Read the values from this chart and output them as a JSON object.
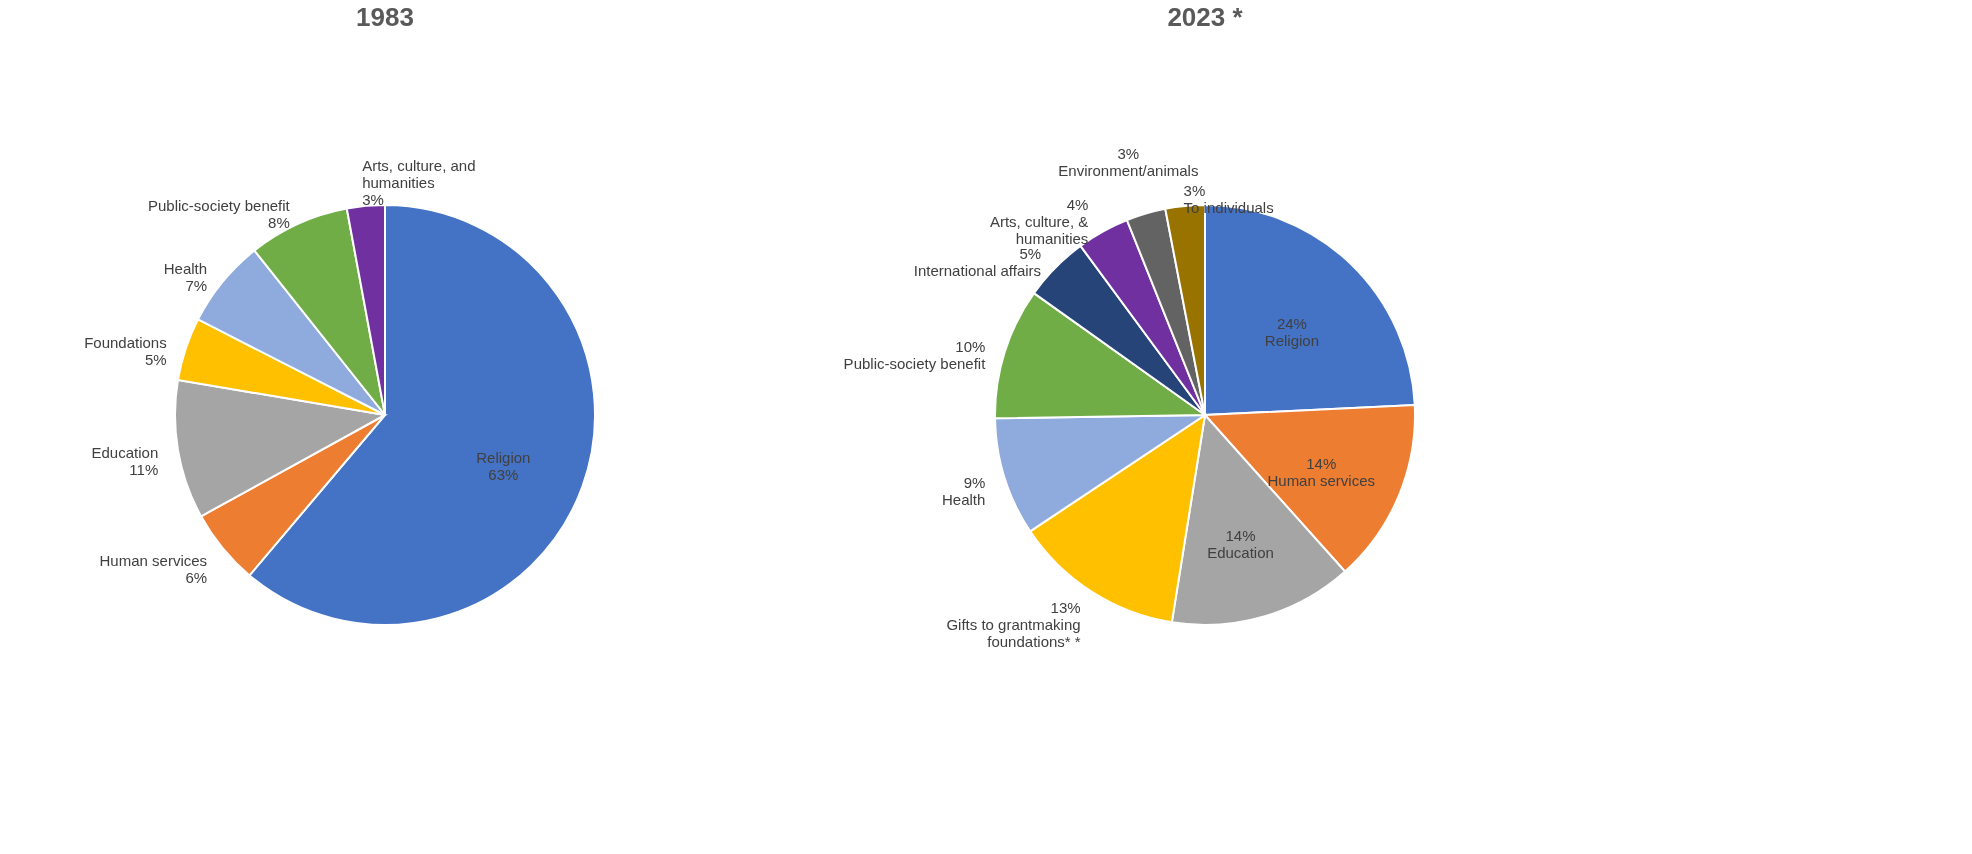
{
  "chart_data": [
    {
      "type": "pie",
      "title": "1983",
      "categories": [
        "Religion",
        "Human services",
        "Education",
        "Foundations",
        "Health",
        "Public-society benefit",
        "Arts, culture, and humanities"
      ],
      "values": [
        63,
        6,
        11,
        5,
        7,
        8,
        3
      ],
      "value_labels": [
        "63%",
        "6%",
        "11%",
        "5%",
        "7%",
        "8%",
        "3%"
      ],
      "colors": [
        "#4472c4",
        "#ed7d31",
        "#a5a5a5",
        "#ffc000",
        "#8faadc",
        "#70ad47",
        "#7030a0"
      ],
      "legend": false
    },
    {
      "type": "pie",
      "title": "2023 *",
      "categories": [
        "Religion",
        "Human services",
        "Education",
        "Gifts to grantmaking foundations* *",
        "Health",
        "Public-society benefit",
        "International affairs",
        "Arts, culture, & humanities",
        "Environment/animals",
        "To individuals"
      ],
      "values": [
        24,
        14,
        14,
        13,
        9,
        10,
        5,
        4,
        3,
        3
      ],
      "value_labels": [
        "24%",
        "14%",
        "14%",
        "13%",
        "9%",
        "10%",
        "5%",
        "4%",
        "3%",
        "3%"
      ],
      "colors": [
        "#4472c4",
        "#ed7d31",
        "#a5a5a5",
        "#ffc000",
        "#8faadc",
        "#70ad47",
        "#264478",
        "#7030a0",
        "#636363",
        "#997300"
      ],
      "legend": false
    }
  ]
}
